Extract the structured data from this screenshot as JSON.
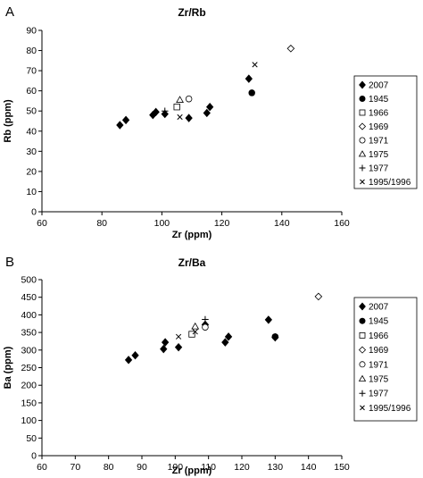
{
  "chart_data": [
    {
      "panel": "A",
      "type": "scatter",
      "title": "Zr/Rb",
      "xlabel": "Zr (ppm)",
      "ylabel": "Rb (ppm)",
      "xlim": [
        60,
        160
      ],
      "ylim": [
        0,
        90
      ],
      "xticks": [
        60,
        80,
        100,
        120,
        140,
        160
      ],
      "yticks": [
        0,
        10,
        20,
        30,
        40,
        50,
        60,
        70,
        80,
        90
      ],
      "grid": false,
      "legend": "right",
      "series": [
        {
          "name": "2007",
          "marker": "diamond-filled",
          "points": [
            [
              86,
              43
            ],
            [
              88,
              45.5
            ],
            [
              97,
              48
            ],
            [
              98,
              49.5
            ],
            [
              101,
              48.5
            ],
            [
              109,
              46.5
            ],
            [
              115,
              49
            ],
            [
              116,
              52
            ],
            [
              129,
              66
            ]
          ]
        },
        {
          "name": "1945",
          "marker": "circle-filled",
          "points": [
            [
              130,
              59
            ]
          ]
        },
        {
          "name": "1966",
          "marker": "square-open",
          "points": [
            [
              105,
              52
            ]
          ]
        },
        {
          "name": "1969",
          "marker": "diamond-open",
          "points": [
            [
              143,
              81
            ]
          ]
        },
        {
          "name": "1971",
          "marker": "circle-open",
          "points": [
            [
              109,
              56
            ]
          ]
        },
        {
          "name": "1975",
          "marker": "triangle-open",
          "points": [
            [
              106,
              55.5
            ]
          ]
        },
        {
          "name": "1977",
          "marker": "plus",
          "points": [
            [
              101,
              50
            ]
          ]
        },
        {
          "name": "1995/1996",
          "marker": "x",
          "points": [
            [
              106,
              47
            ],
            [
              131,
              73
            ]
          ]
        }
      ]
    },
    {
      "panel": "B",
      "type": "scatter",
      "title": "Zr/Ba",
      "xlabel": "Zr (ppm)",
      "ylabel": "Ba (ppm)",
      "xlim": [
        60,
        150
      ],
      "ylim": [
        0,
        500
      ],
      "xticks": [
        60,
        70,
        80,
        90,
        100,
        110,
        120,
        130,
        140,
        150
      ],
      "yticks": [
        0,
        50,
        100,
        150,
        200,
        250,
        300,
        350,
        400,
        450,
        500
      ],
      "grid": false,
      "legend": "right",
      "series": [
        {
          "name": "2007",
          "marker": "diamond-filled",
          "points": [
            [
              86,
              272
            ],
            [
              88,
              285
            ],
            [
              96.5,
              303
            ],
            [
              97,
              322
            ],
            [
              101,
              308
            ],
            [
              109,
              372
            ],
            [
              115,
              322
            ],
            [
              116,
              338
            ],
            [
              128,
              386
            ],
            [
              130,
              336
            ]
          ]
        },
        {
          "name": "1945",
          "marker": "circle-filled",
          "points": [
            [
              130,
              338
            ]
          ]
        },
        {
          "name": "1966",
          "marker": "square-open",
          "points": [
            [
              105,
              345
            ]
          ]
        },
        {
          "name": "1969",
          "marker": "diamond-open",
          "points": [
            [
              143,
              452
            ]
          ]
        },
        {
          "name": "1971",
          "marker": "circle-open",
          "points": [
            [
              109,
              365
            ]
          ]
        },
        {
          "name": "1975",
          "marker": "triangle-open",
          "points": [
            [
              106,
              367
            ]
          ]
        },
        {
          "name": "1977",
          "marker": "plus",
          "points": [
            [
              109,
              387
            ]
          ]
        },
        {
          "name": "1995/1996",
          "marker": "x",
          "points": [
            [
              101,
              338
            ],
            [
              106,
              352
            ]
          ]
        }
      ]
    }
  ]
}
